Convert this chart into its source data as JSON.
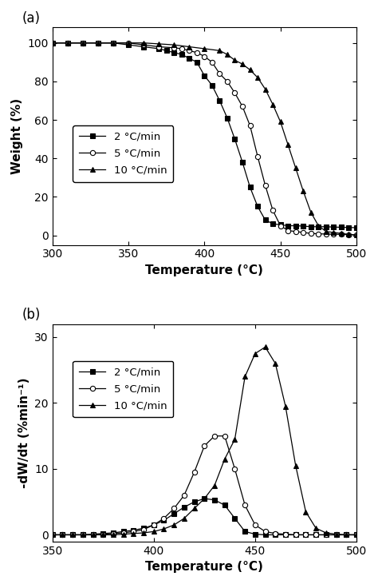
{
  "panel_a": {
    "title_label": "(a)",
    "xlabel": "Temperature (°C)",
    "ylabel": "Weight (%)",
    "xlim": [
      300,
      500
    ],
    "ylim": [
      -5,
      108
    ],
    "yticks": [
      0,
      20,
      40,
      60,
      80,
      100
    ],
    "xticks": [
      300,
      350,
      400,
      450,
      500
    ],
    "series": [
      {
        "label": "2 °C/min",
        "marker": "s",
        "x": [
          300,
          310,
          320,
          330,
          340,
          350,
          360,
          370,
          375,
          380,
          385,
          390,
          395,
          400,
          405,
          410,
          415,
          420,
          425,
          430,
          435,
          440,
          445,
          450,
          455,
          460,
          465,
          470,
          475,
          480,
          485,
          490,
          495,
          500
        ],
        "y": [
          100,
          100,
          100,
          100,
          100,
          99,
          98,
          97,
          96,
          95,
          94,
          92,
          90,
          83,
          78,
          70,
          61,
          50,
          38,
          25,
          15,
          8,
          6,
          5.5,
          5,
          5,
          4.8,
          4.5,
          4.5,
          4.5,
          4.3,
          4.2,
          4.1,
          4.0
        ]
      },
      {
        "label": "5 °C/min",
        "marker": "o",
        "x": [
          300,
          310,
          320,
          330,
          340,
          350,
          360,
          370,
          380,
          385,
          390,
          395,
          400,
          405,
          410,
          415,
          420,
          425,
          430,
          435,
          440,
          445,
          450,
          455,
          460,
          465,
          470,
          475,
          480,
          485,
          490,
          495,
          500
        ],
        "y": [
          100,
          100,
          100,
          100,
          100,
          100,
          99,
          98,
          97.5,
          97,
          96,
          95,
          93,
          90,
          84,
          80,
          74,
          67,
          57,
          41,
          26,
          13,
          5,
          2.5,
          2,
          1.5,
          1,
          0.8,
          0.7,
          0.6,
          0.5,
          0.4,
          0.3
        ]
      },
      {
        "label": "10 °C/min",
        "marker": "^",
        "x": [
          300,
          310,
          320,
          330,
          340,
          350,
          360,
          370,
          380,
          390,
          400,
          410,
          415,
          420,
          425,
          430,
          435,
          440,
          445,
          450,
          455,
          460,
          465,
          470,
          475,
          480,
          485,
          490,
          495,
          500
        ],
        "y": [
          100,
          100,
          100,
          100,
          100,
          100,
          100,
          99.5,
          99,
          98,
          97,
          96,
          94,
          91,
          89,
          86,
          82,
          76,
          68,
          59,
          47,
          35,
          23,
          12,
          5,
          2,
          1.5,
          1,
          0.5,
          0.3
        ]
      }
    ]
  },
  "panel_b": {
    "title_label": "(b)",
    "xlabel": "Temperature (°C)",
    "ylabel": "-dW/dt (%min⁻¹)",
    "xlim": [
      350,
      500
    ],
    "ylim": [
      -1,
      32
    ],
    "yticks": [
      0,
      10,
      20,
      30
    ],
    "xticks": [
      350,
      400,
      450,
      500
    ],
    "series": [
      {
        "label": "2 °C/min",
        "marker": "s",
        "x": [
          350,
          355,
          360,
          365,
          370,
          375,
          380,
          385,
          390,
          395,
          400,
          405,
          410,
          415,
          420,
          425,
          430,
          435,
          440,
          445,
          450,
          455,
          460,
          465,
          470,
          475,
          480,
          485,
          490,
          495,
          500
        ],
        "y": [
          0,
          0,
          0,
          0,
          0.1,
          0.2,
          0.3,
          0.5,
          0.7,
          1.0,
          1.5,
          2.2,
          3.2,
          4.2,
          5.0,
          5.5,
          5.3,
          4.5,
          2.5,
          0.5,
          0.1,
          0,
          0,
          0,
          0,
          0,
          0,
          0,
          0,
          0,
          0
        ]
      },
      {
        "label": "5 °C/min",
        "marker": "o",
        "x": [
          350,
          355,
          360,
          365,
          370,
          375,
          380,
          385,
          390,
          395,
          400,
          405,
          410,
          415,
          420,
          425,
          430,
          435,
          440,
          445,
          450,
          455,
          460,
          465,
          470,
          475,
          480,
          485,
          490,
          495,
          500
        ],
        "y": [
          0,
          0,
          0,
          0,
          0,
          0.1,
          0.2,
          0.3,
          0.5,
          0.8,
          1.5,
          2.5,
          4.0,
          6.0,
          9.5,
          13.5,
          15.0,
          15.0,
          10.0,
          4.5,
          1.5,
          0.5,
          0.2,
          0.1,
          0.0,
          0.0,
          0.0,
          0.0,
          0.0,
          0.0,
          0.0
        ]
      },
      {
        "label": "10 °C/min",
        "marker": "^",
        "x": [
          350,
          355,
          360,
          365,
          370,
          375,
          380,
          385,
          390,
          395,
          400,
          405,
          410,
          415,
          420,
          425,
          430,
          435,
          440,
          445,
          450,
          455,
          460,
          465,
          470,
          475,
          480,
          485,
          490,
          495,
          500
        ],
        "y": [
          0,
          0,
          0,
          0,
          0,
          0,
          0,
          0.1,
          0.2,
          0.3,
          0.5,
          0.9,
          1.5,
          2.5,
          4.0,
          5.5,
          7.5,
          11.5,
          14.5,
          24.0,
          27.5,
          28.5,
          26.0,
          19.5,
          10.5,
          3.5,
          1.0,
          0.3,
          0.1,
          0.0,
          0.0
        ]
      }
    ]
  },
  "fig_width": 4.74,
  "fig_height": 7.31,
  "dpi": 100
}
